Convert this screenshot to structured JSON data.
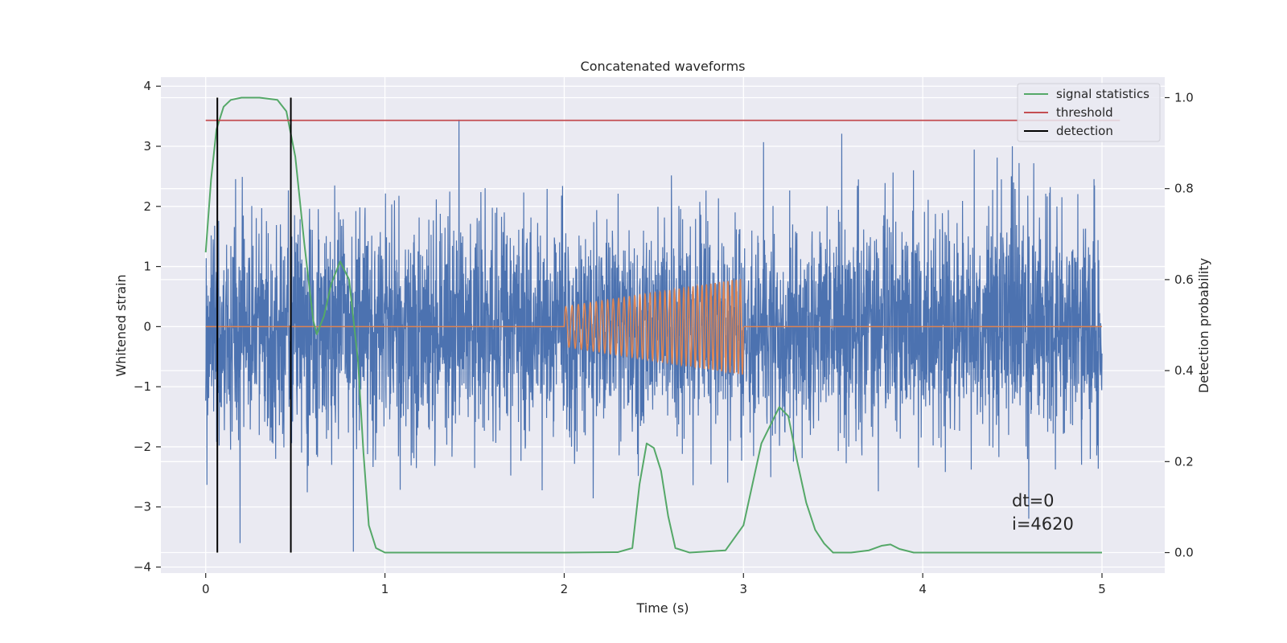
{
  "chart_data": {
    "type": "line",
    "title": "Concatenated waveforms",
    "xlabel": "Time (s)",
    "ylabel_left": "Whitened strain",
    "ylabel_right": "Detection probability",
    "xlim": [
      -0.25,
      5.35
    ],
    "ylim_left": [
      -4.1,
      4.15
    ],
    "ylim_right": [
      -0.045,
      1.045
    ],
    "xticks": [
      0,
      1,
      2,
      3,
      4,
      5
    ],
    "xtick_labels": [
      "0",
      "1",
      "2",
      "3",
      "4",
      "5"
    ],
    "yticks_left": [
      4,
      3,
      2,
      1,
      0,
      -1,
      -2,
      -3,
      -4
    ],
    "ytick_labels_left": [
      "4",
      "3",
      "2",
      "1",
      "0",
      "−1",
      "−2",
      "−3",
      "−4"
    ],
    "yticks_right": [
      1.0,
      0.8,
      0.6,
      0.4,
      0.2,
      0.0
    ],
    "ytick_labels_right": [
      "1.0",
      "0.8",
      "0.6",
      "0.4",
      "0.2",
      "0.0"
    ],
    "grid": true,
    "legend_position": "top-right",
    "legend": [
      {
        "label": "signal statistics",
        "color": "#55a868"
      },
      {
        "label": "threshold",
        "color": "#c44e52"
      },
      {
        "label": "detection",
        "color": "#000000"
      }
    ],
    "annotations": [
      "dt=0",
      "i=4620"
    ],
    "series": [
      {
        "name": "signal statistics",
        "axis": "right",
        "color": "#55a868",
        "x": [
          0.0,
          0.03,
          0.06,
          0.1,
          0.14,
          0.2,
          0.3,
          0.4,
          0.45,
          0.5,
          0.55,
          0.6,
          0.62,
          0.66,
          0.7,
          0.75,
          0.8,
          0.85,
          0.88,
          0.91,
          0.95,
          1.0,
          2.0,
          2.3,
          2.38,
          2.42,
          2.46,
          2.5,
          2.54,
          2.58,
          2.62,
          2.7,
          2.9,
          3.0,
          3.1,
          3.2,
          3.25,
          3.3,
          3.35,
          3.4,
          3.45,
          3.5,
          3.6,
          3.7,
          3.77,
          3.82,
          3.87,
          3.95,
          4.2,
          5.0
        ],
        "y": [
          0.66,
          0.82,
          0.93,
          0.98,
          0.995,
          1.0,
          1.0,
          0.995,
          0.97,
          0.87,
          0.68,
          0.51,
          0.48,
          0.52,
          0.59,
          0.64,
          0.6,
          0.42,
          0.22,
          0.06,
          0.01,
          0.0,
          0.0,
          0.001,
          0.01,
          0.15,
          0.24,
          0.23,
          0.18,
          0.08,
          0.01,
          0.0,
          0.005,
          0.06,
          0.24,
          0.32,
          0.3,
          0.2,
          0.11,
          0.05,
          0.02,
          0.0,
          0.0,
          0.005,
          0.015,
          0.018,
          0.008,
          0.0,
          0.0,
          0.0
        ]
      },
      {
        "name": "threshold",
        "axis": "right",
        "color": "#c44e52",
        "x": [
          0.0,
          5.1
        ],
        "y": [
          0.95,
          0.95
        ]
      },
      {
        "name": "detection",
        "axis": "right",
        "color": "#000000",
        "type": "vlines",
        "x": [
          0.065,
          0.475
        ],
        "ymin": 0.0,
        "ymax": 1.0
      },
      {
        "name": "noise",
        "axis": "left",
        "color": "#4c72b0",
        "x_range": [
          0.0,
          5.0
        ],
        "envelope_abs_max": 3.8,
        "typical_range": [
          -2.5,
          2.5
        ]
      },
      {
        "name": "injected signal",
        "axis": "left",
        "color": "#dd8452",
        "x_range": [
          0.0,
          5.0
        ],
        "chirp_window": [
          2.0,
          3.0
        ],
        "amplitude_start": 0.33,
        "amplitude_end": 0.8,
        "baseline": 0.0
      }
    ]
  },
  "colors": {
    "plot_background": "#eaeaf2",
    "grid": "#ffffff",
    "text": "#262626"
  }
}
